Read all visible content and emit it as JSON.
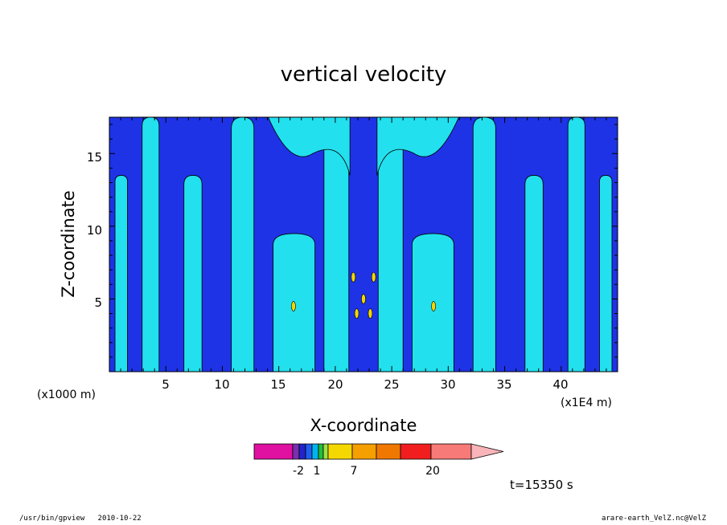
{
  "chart_data": {
    "type": "heatmap",
    "title": "vertical velocity",
    "xlabel": "X-coordinate",
    "ylabel": "Z-coordinate",
    "x_unit_left": "(x1000 m)",
    "x_unit_right": "(x1E4 m)",
    "xlim": [
      0,
      45
    ],
    "ylim": [
      0,
      17.5
    ],
    "x_ticks": [
      "5",
      "10",
      "15",
      "20",
      "25",
      "30",
      "35",
      "40"
    ],
    "y_ticks": [
      "5",
      "10",
      "15"
    ],
    "colorbar": {
      "labels": [
        "-2",
        "1",
        "7",
        "20"
      ],
      "colors": [
        "#e010a0",
        "#7b2fb0",
        "#2323c8",
        "#1e5ff0",
        "#00b4f0",
        "#1fbf3a",
        "#a0e040",
        "#f5d800",
        "#f5a000",
        "#f07800",
        "#f01e1e",
        "#f87a78",
        "#f8b4b8"
      ]
    },
    "fill_colors": {
      "negative": "#1e33e6",
      "positive": "#23e0ee"
    },
    "time_label": "t=15350 s"
  },
  "footer": {
    "left": "/usr/bin/gpview   2010-10-22",
    "right": "arare-earth_VelZ.nc@VelZ"
  }
}
